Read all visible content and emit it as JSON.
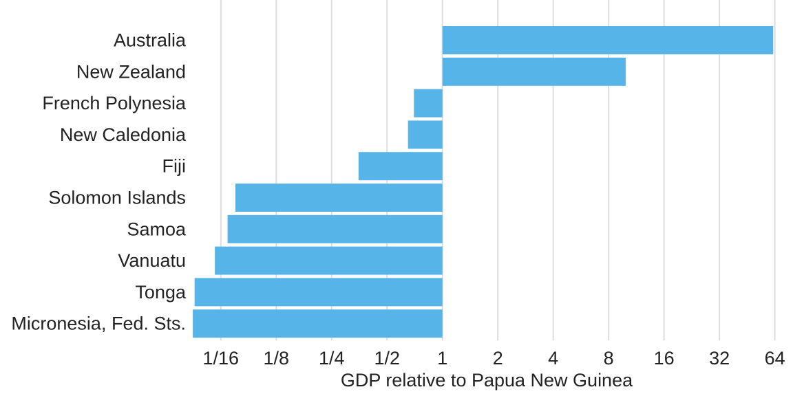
{
  "chart_data": {
    "type": "bar",
    "orientation": "horizontal",
    "categories": [
      "Australia",
      "New Zealand",
      "French Polynesia",
      "New Caledonia",
      "Fiji",
      "Solomon Islands",
      "Samoa",
      "Vanuatu",
      "Tonga",
      "Micronesia, Fed. Sts."
    ],
    "values": [
      62.7,
      9.9,
      0.7,
      0.65,
      0.35,
      0.075,
      0.068,
      0.058,
      0.045,
      0.044
    ],
    "baseline": 1,
    "xscale": "log2",
    "xlim": [
      0.0436,
      70
    ],
    "xticks": [
      0.0625,
      0.125,
      0.25,
      0.5,
      1,
      2,
      4,
      8,
      16,
      32,
      64
    ],
    "xtick_labels": [
      "1/16",
      "1/8",
      "1/4",
      "1/2",
      "1",
      "2",
      "4",
      "8",
      "16",
      "32",
      "64"
    ],
    "xlabel": "GDP relative to Papua New Guinea",
    "ylabel": "",
    "title": "",
    "grid": "vertical",
    "colors": {
      "bar": "#56B4E9",
      "grid": "#dddddd",
      "text": "#222222"
    }
  }
}
